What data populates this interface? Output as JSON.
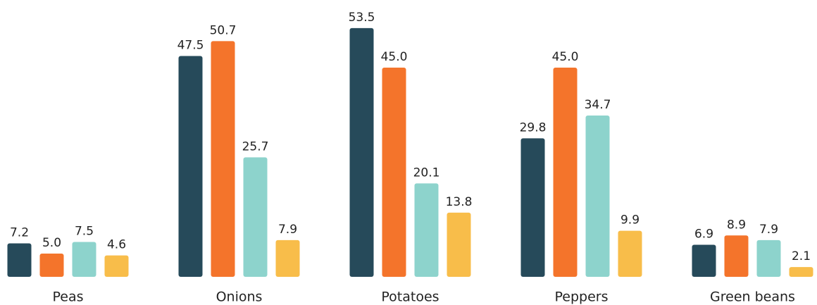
{
  "chart_data": {
    "type": "bar",
    "categories": [
      "Peas",
      "Onions",
      "Potatoes",
      "Peppers",
      "Green beans"
    ],
    "series": [
      {
        "color": "#264a5a",
        "values": [
          7.2,
          47.5,
          53.5,
          29.8,
          6.9
        ]
      },
      {
        "color": "#f4742b",
        "values": [
          5.0,
          50.7,
          45.0,
          45.0,
          8.9
        ],
        "value_labels": [
          "5.0",
          "50.7",
          "45.0",
          "45.0",
          "8.9"
        ]
      },
      {
        "color": "#8dd3cc",
        "values": [
          7.5,
          25.7,
          20.1,
          34.7,
          7.9
        ]
      },
      {
        "color": "#f8bd4a",
        "values": [
          4.6,
          7.9,
          13.8,
          9.9,
          2.1
        ]
      }
    ],
    "ylim": [
      0,
      55
    ]
  }
}
